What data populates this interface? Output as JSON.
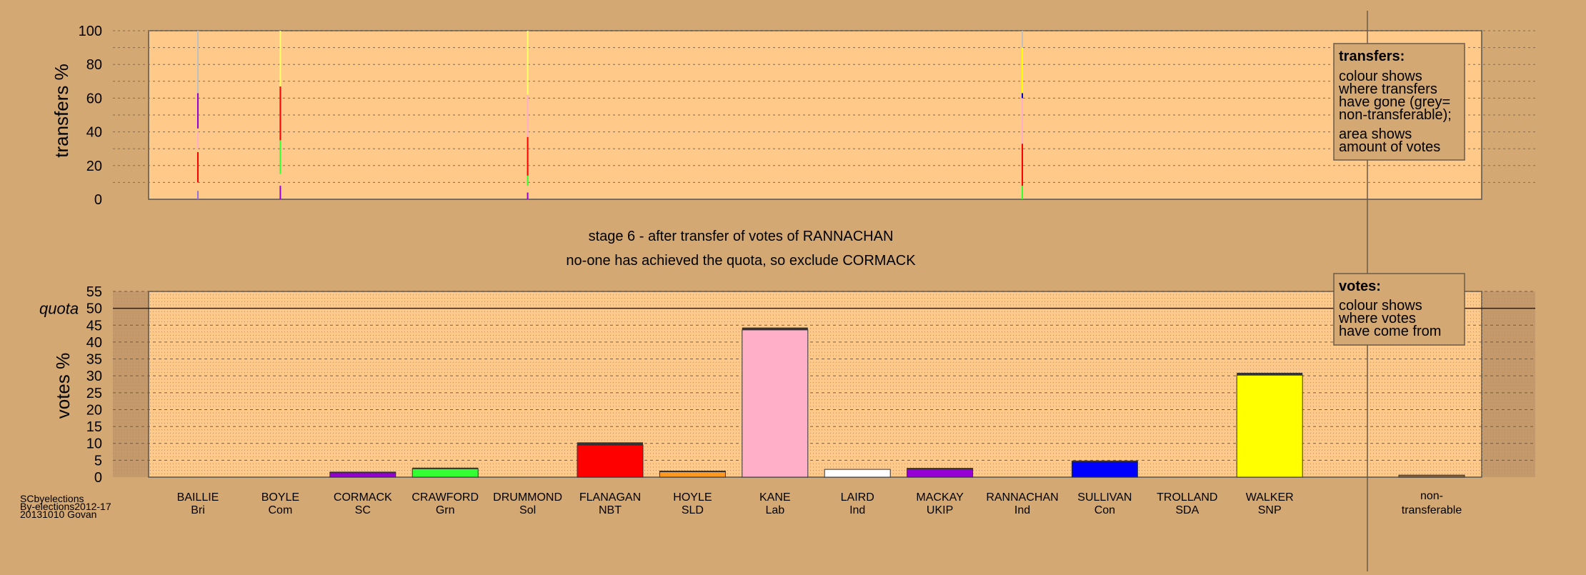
{
  "chart_data": [
    {
      "type": "bar",
      "ylabel": "transfers %",
      "ylim": [
        0,
        100
      ],
      "yticks": [
        0,
        20,
        40,
        60,
        80,
        100
      ],
      "legend": {
        "title": "transfers:",
        "lines": [
          "colour shows",
          "where transfers",
          "have gone (grey=",
          "non-transferable);",
          "area shows",
          "amount of votes"
        ]
      },
      "series_transfer_strips": [
        {
          "candidate": "BAILLIE",
          "segments": [
            {
              "color": "#9370db",
              "from": 0,
              "to": 5
            },
            {
              "color": "#ff0000",
              "from": 10,
              "to": 28
            },
            {
              "color": "#ffb0c8",
              "from": 30,
              "to": 40
            },
            {
              "color": "#9400d3",
              "from": 42,
              "to": 63
            },
            {
              "color": "#c0c0c0",
              "from": 63,
              "to": 100
            }
          ]
        },
        {
          "candidate": "BOYLE",
          "segments": [
            {
              "color": "#9400d3",
              "from": 0,
              "to": 8
            },
            {
              "color": "#33ff33",
              "from": 15,
              "to": 35
            },
            {
              "color": "#ff0000",
              "from": 35,
              "to": 67
            },
            {
              "color": "#ffff66",
              "from": 67,
              "to": 100
            }
          ]
        },
        {
          "candidate": "DRUMMOND",
          "segments": [
            {
              "color": "#9400d3",
              "from": 0,
              "to": 4
            },
            {
              "color": "#33ff33",
              "from": 8,
              "to": 14
            },
            {
              "color": "#ff0000",
              "from": 14,
              "to": 37
            },
            {
              "color": "#ffb0c8",
              "from": 37,
              "to": 62
            },
            {
              "color": "#ffff66",
              "from": 62,
              "to": 100
            }
          ]
        },
        {
          "candidate": "RANNACHAN",
          "segments": [
            {
              "color": "#33ff33",
              "from": 0,
              "to": 8
            },
            {
              "color": "#ff0000",
              "from": 8,
              "to": 33
            },
            {
              "color": "#ffb0c8",
              "from": 33,
              "to": 60
            },
            {
              "color": "#0000cc",
              "from": 60,
              "to": 63
            },
            {
              "color": "#ffff00",
              "from": 63,
              "to": 90
            },
            {
              "color": "#c0c0c0",
              "from": 90,
              "to": 100
            }
          ]
        }
      ]
    },
    {
      "type": "bar",
      "title": "stage 6 - after transfer of votes of RANNACHAN",
      "subtitle": "no-one has achieved the quota, so exclude CORMACK",
      "ylabel": "votes %",
      "ylim": [
        0,
        55
      ],
      "yticks": [
        0,
        5,
        10,
        15,
        20,
        25,
        30,
        35,
        40,
        45,
        50,
        55
      ],
      "quota": 50,
      "quota_label": "quota",
      "legend": {
        "title": "votes:",
        "lines": [
          "colour shows",
          "where votes",
          "have come from"
        ]
      },
      "categories": [
        {
          "name": "BAILLIE",
          "party": "Bri",
          "value": 0,
          "added": 0,
          "color": "#9370db"
        },
        {
          "name": "BOYLE",
          "party": "Com",
          "value": 0,
          "added": 0,
          "color": "#cc0000"
        },
        {
          "name": "CORMACK",
          "party": "SC",
          "value": 1.5,
          "added": 0.1,
          "color": "#9400d3"
        },
        {
          "name": "CRAWFORD",
          "party": "Grn",
          "value": 2.5,
          "added": 0.3,
          "color": "#33ff33"
        },
        {
          "name": "DRUMMOND",
          "party": "Sol",
          "value": 0,
          "added": 0,
          "color": "#ff8800"
        },
        {
          "name": "FLANAGAN",
          "party": "NBT",
          "value": 9.5,
          "added": 0.8,
          "color": "#ff0000"
        },
        {
          "name": "HOYLE",
          "party": "SLD",
          "value": 1.8,
          "added": 0.1,
          "color": "#ff9922"
        },
        {
          "name": "KANE",
          "party": "Lab",
          "value": 43.6,
          "added": 0.7,
          "color": "#ffb0c8"
        },
        {
          "name": "LAIRD",
          "party": "Ind",
          "value": 2.3,
          "added": 0,
          "color": "#ffffff"
        },
        {
          "name": "MACKAY",
          "party": "UKIP",
          "value": 2.6,
          "added": 0.1,
          "color": "#9400d3"
        },
        {
          "name": "RANNACHAN",
          "party": "Ind",
          "value": 0,
          "added": 0,
          "color": "#ffffff"
        },
        {
          "name": "SULLIVAN",
          "party": "Con",
          "value": 4.7,
          "added": 0.2,
          "color": "#0000ff"
        },
        {
          "name": "TROLLAND",
          "party": "SDA",
          "value": 0,
          "added": 0,
          "color": "#c0c0c0"
        },
        {
          "name": "WALKER",
          "party": "SNP",
          "value": 30.2,
          "added": 0.7,
          "color": "#ffff00"
        }
      ],
      "non_transferable": {
        "label_line1": "non-",
        "label_line2": "transferable",
        "value": 0.6,
        "color": "#8a6a4a"
      }
    }
  ],
  "credits": [
    "SCbyelections",
    "By-elections2012-17",
    "20131010 Govan"
  ]
}
